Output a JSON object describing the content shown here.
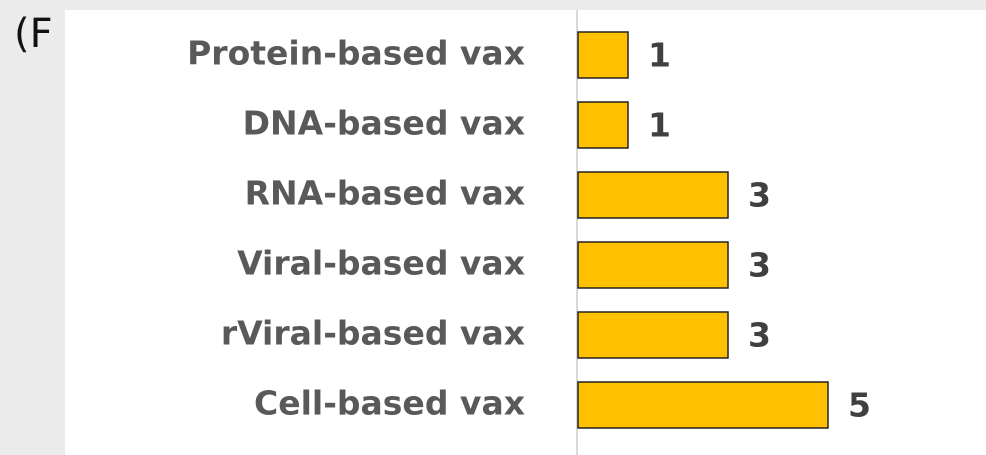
{
  "chart_data": {
    "type": "bar",
    "orientation": "horizontal",
    "annotation": "(F",
    "categories": [
      "Protein-based vax",
      "DNA-based vax",
      "RNA-based vax",
      "Viral-based vax",
      "rViral-based vax",
      "Cell-based vax"
    ],
    "values": [
      1,
      1,
      3,
      3,
      3,
      5
    ],
    "color": "#ffc000"
  }
}
